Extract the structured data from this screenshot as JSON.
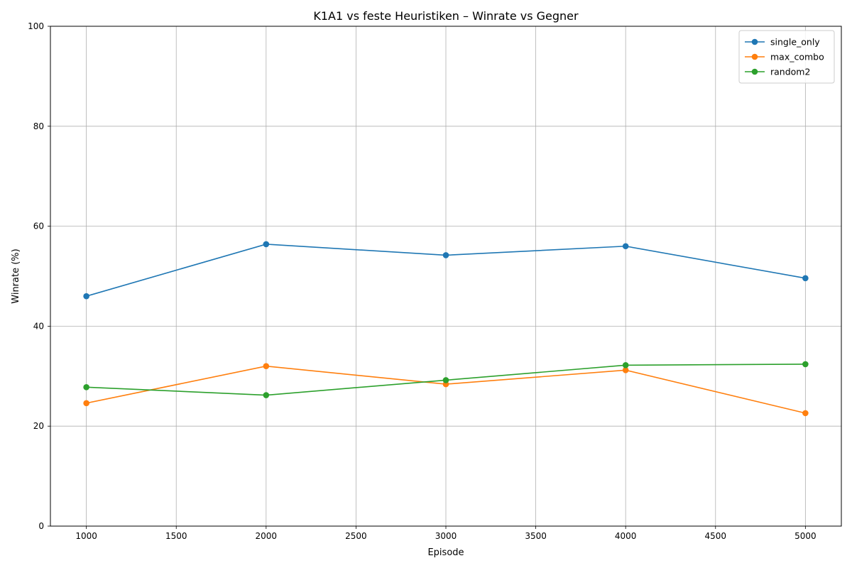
{
  "chart_data": {
    "type": "line",
    "title": "K1A1 vs feste Heuristiken – Winrate vs Gegner",
    "xlabel": "Episode",
    "ylabel": "Winrate (%)",
    "x": [
      1000,
      2000,
      3000,
      4000,
      5000
    ],
    "xlim": [
      800,
      5200
    ],
    "ylim": [
      0,
      100
    ],
    "xticks": [
      1000,
      1500,
      2000,
      2500,
      3000,
      3500,
      4000,
      4500,
      5000
    ],
    "yticks": [
      0,
      20,
      40,
      60,
      80,
      100
    ],
    "grid": true,
    "legend_position": "top-right",
    "series": [
      {
        "name": "single_only",
        "color": "#1f77b4",
        "values": [
          46.0,
          56.4,
          54.2,
          56.0,
          49.6
        ]
      },
      {
        "name": "max_combo",
        "color": "#ff7f0e",
        "values": [
          24.6,
          32.0,
          28.4,
          31.2,
          22.6
        ]
      },
      {
        "name": "random2",
        "color": "#2ca02c",
        "values": [
          27.8,
          26.2,
          29.2,
          32.2,
          32.4
        ]
      }
    ]
  }
}
